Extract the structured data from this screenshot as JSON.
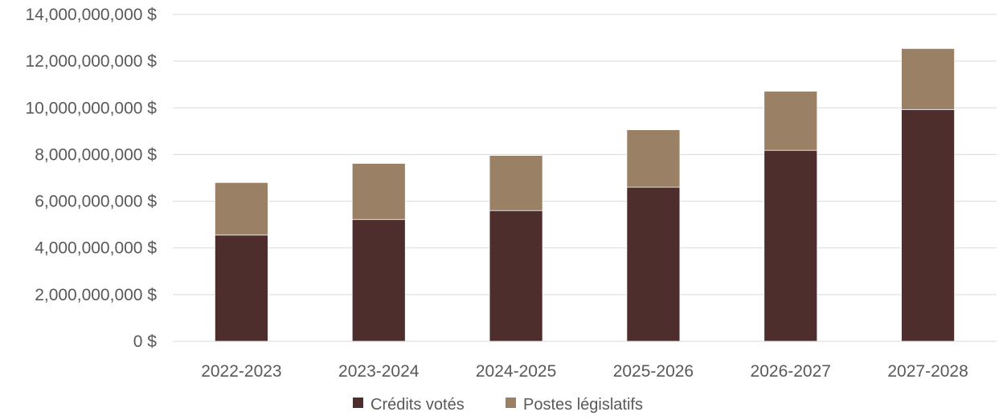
{
  "chart_data": {
    "type": "bar",
    "stacked": true,
    "categories": [
      "2022-2023",
      "2023-2024",
      "2024-2025",
      "2025-2026",
      "2026-2027",
      "2027-2028"
    ],
    "series": [
      {
        "name": "Crédits votés",
        "color": "#4e2e2d",
        "values": [
          4550000000,
          5220000000,
          5600000000,
          6600000000,
          8180000000,
          9930000000
        ]
      },
      {
        "name": "Postes législatifs",
        "color": "#9a8064",
        "values": [
          2250000000,
          2400000000,
          2360000000,
          2460000000,
          2530000000,
          2610000000
        ]
      }
    ],
    "yticks": [
      "0 $",
      "2,000,000,000 $",
      "4,000,000,000 $",
      "6,000,000,000 $",
      "8,000,000,000 $",
      "10,000,000,000 $",
      "12,000,000,000 $",
      "14,000,000,000 $"
    ],
    "ylim": [
      0,
      14000000000
    ],
    "grid": true,
    "legend": "bottom",
    "title": "",
    "xlabel": "",
    "ylabel": ""
  }
}
